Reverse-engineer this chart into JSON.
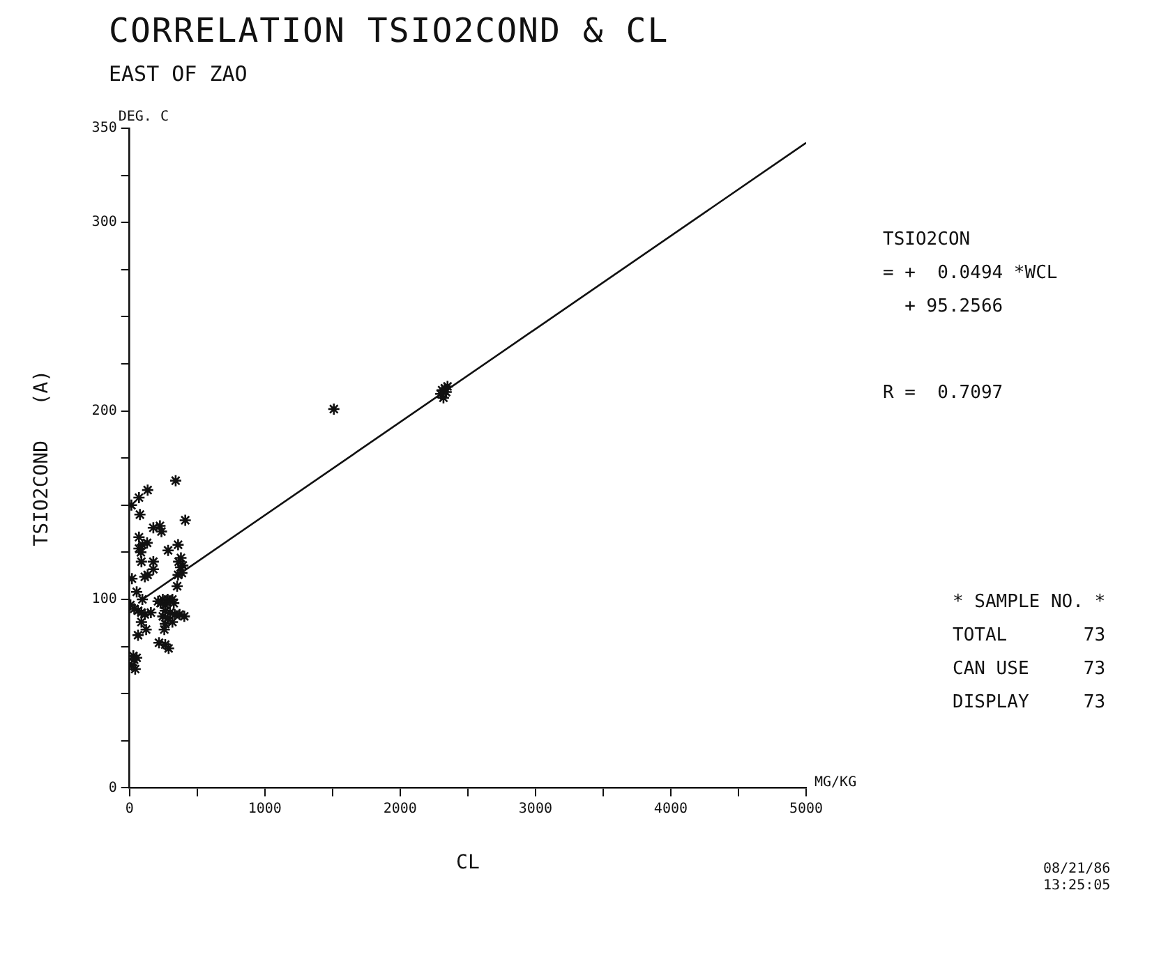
{
  "chart_data": {
    "type": "scatter",
    "title": "CORRELATION TSIO2COND & CL",
    "subtitle": "EAST OF ZAO",
    "xlabel": "CL",
    "ylabel": "TSIO2COND   (A)",
    "series": [
      {
        "type": "scatter",
        "color": "#111111",
        "marker": "cross",
        "x": [
          341,
          134,
          70,
          14,
          77,
          412,
          176,
          225,
          236,
          70,
          130,
          95,
          359,
          70,
          84,
          285,
          380,
          363,
          394,
          377,
          387,
          359,
          88,
          176,
          176,
          134,
          113,
          18,
          352,
          53,
          95,
          7,
          35,
          63,
          88,
          113,
          158,
          211,
          246,
          282,
          317,
          229,
          264,
          299,
          327,
          264,
          299,
          334,
          246,
          282,
          317,
          264,
          370,
          405,
          257,
          88,
          123,
          63,
          218,
          264,
          289,
          28,
          35,
          18,
          42,
          53,
          1510,
          2300,
          2330,
          2350,
          2320,
          2340,
          2310
        ],
        "values": [
          163,
          158,
          154,
          150,
          145,
          142,
          138,
          139,
          136,
          133,
          130,
          129,
          129,
          127,
          125,
          126,
          122,
          120,
          118,
          117,
          114,
          113,
          120,
          120,
          116,
          113,
          112,
          111,
          107,
          104,
          100,
          97,
          95,
          94,
          93,
          92,
          93,
          99,
          100,
          100,
          100,
          98,
          97,
          99,
          98,
          94,
          93,
          92,
          91,
          90,
          88,
          87,
          92,
          91,
          84,
          88,
          84,
          81,
          77,
          76,
          74,
          70,
          68,
          65,
          63,
          69,
          201,
          209,
          212,
          213,
          207,
          210,
          211
        ]
      },
      {
        "type": "line",
        "color": "#111111",
        "marker": "none",
        "line_style": "solid",
        "x": [
          100,
          5000
        ],
        "values": [
          100.2,
          342.3
        ]
      }
    ],
    "xlim": [
      0,
      5000
    ],
    "ylim": [
      0,
      350
    ],
    "xticks": [
      0,
      {
        "value": 500,
        "label": null
      },
      1000,
      {
        "value": 1500,
        "label": null
      },
      2000,
      {
        "value": 2500,
        "label": null
      },
      3000,
      {
        "value": 3500,
        "label": null
      },
      4000,
      {
        "value": 4500,
        "label": null
      },
      5000
    ],
    "yticks": [
      0,
      {
        "value": 25,
        "label": null
      },
      {
        "value": 50,
        "label": null
      },
      {
        "value": 75,
        "label": null
      },
      100,
      {
        "value": 125,
        "label": null
      },
      {
        "value": 150,
        "label": null
      },
      {
        "value": 175,
        "label": null
      },
      200,
      {
        "value": 225,
        "label": null
      },
      {
        "value": 250,
        "label": null
      },
      {
        "value": 275,
        "label": null
      },
      300,
      {
        "value": 325,
        "label": null
      },
      350
    ],
    "grid": false,
    "legend": false,
    "annotations": [
      "DEG. C",
      "MG/KG",
      "TSIO2CON",
      "= +  0.0494 *WCL",
      "  + 95.2566",
      "R =  0.7097",
      "* SAMPLE NO. *",
      "TOTAL       73",
      "CAN USE     73",
      "DISPLAY     73",
      "08/21/86",
      "13:25:05"
    ]
  }
}
